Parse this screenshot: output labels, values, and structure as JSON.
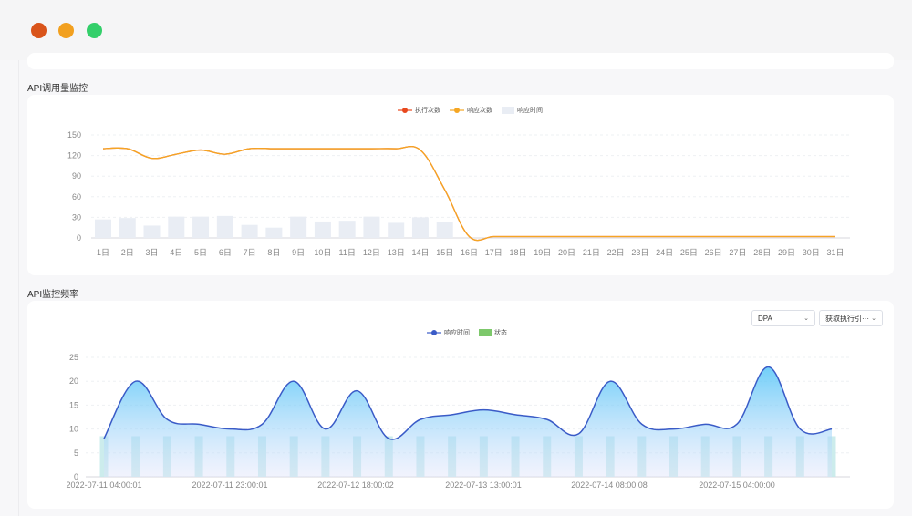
{
  "window": {
    "controls": [
      "close",
      "minimize",
      "maximize"
    ]
  },
  "sections": {
    "api_calls_title": "API调用量监控",
    "api_freq_title": "API监控频率"
  },
  "filters": {
    "dpa_value": "DPA",
    "executor_value": "获取执行引···"
  },
  "colors": {
    "exec": "#e8481d",
    "resp": "#f5a623",
    "resp_time_bar": "#e9edf4",
    "line2": "#3a5bc7",
    "status_bar": "#c6eaea"
  },
  "chart_data": [
    {
      "type": "line",
      "legend": [
        "执行次数",
        "响应次数",
        "响应时间"
      ],
      "categories": [
        "1日",
        "2日",
        "3日",
        "4日",
        "5日",
        "6日",
        "7日",
        "8日",
        "9日",
        "10日",
        "11日",
        "12日",
        "13日",
        "14日",
        "15日",
        "16日",
        "17日",
        "18日",
        "19日",
        "20日",
        "21日",
        "22日",
        "23日",
        "24日",
        "25日",
        "26日",
        "27日",
        "28日",
        "29日",
        "30日",
        "31日"
      ],
      "ylim": [
        0,
        150
      ],
      "yticks": [
        "150",
        "120",
        "90",
        "60",
        "30",
        "0"
      ],
      "series": [
        {
          "name": "执行次数",
          "kind": "line",
          "values": [
            130,
            130,
            116,
            122,
            128,
            122,
            130,
            130,
            130,
            130,
            130,
            130,
            130,
            128,
            70,
            2,
            2,
            2,
            2,
            2,
            2,
            2,
            2,
            2,
            2,
            2,
            2,
            2,
            2,
            2,
            2
          ]
        },
        {
          "name": "响应次数",
          "kind": "line",
          "values": [
            130,
            130,
            116,
            122,
            128,
            122,
            130,
            130,
            130,
            130,
            130,
            130,
            130,
            128,
            70,
            2,
            2,
            2,
            2,
            2,
            2,
            2,
            2,
            2,
            2,
            2,
            2,
            2,
            2,
            2,
            2
          ]
        },
        {
          "name": "响应时间",
          "kind": "bar",
          "values": [
            27,
            29,
            18,
            31,
            31,
            32,
            19,
            15,
            31,
            24,
            25,
            31,
            22,
            30,
            23,
            null,
            null,
            null,
            null,
            null,
            null,
            null,
            null,
            null,
            null,
            null,
            null,
            null,
            null,
            null,
            null
          ]
        }
      ],
      "grid": true
    },
    {
      "type": "area",
      "legend": [
        "响应时间",
        "状态"
      ],
      "ylim": [
        0,
        25
      ],
      "yticks": [
        "25",
        "20",
        "15",
        "10",
        "5",
        "0"
      ],
      "xticks": [
        "2022-07-11 04:00:01",
        "2022-07-11 23:00:01",
        "2022-07-12 18:00:02",
        "2022-07-13 13:00:01",
        "2022-07-14 08:00:08",
        "2022-07-15 04:00:00"
      ],
      "series": [
        {
          "name": "响应时间",
          "kind": "area",
          "values": [
            8,
            20,
            12,
            11,
            10,
            11,
            20,
            10,
            18,
            8,
            12,
            13,
            14,
            13,
            12,
            9,
            20,
            11,
            10,
            11,
            11,
            23,
            10,
            10
          ]
        },
        {
          "name": "状态",
          "kind": "bar",
          "values": [
            8.5,
            8.5,
            8.5,
            8.5,
            8.5,
            8.5,
            8.5,
            8.5,
            8.5,
            8.5,
            8.5,
            8.5,
            8.5,
            8.5,
            8.5,
            8.5,
            8.5,
            8.5,
            8.5,
            8.5,
            8.5,
            8.5,
            8.5,
            8.5
          ]
        }
      ],
      "grid": true
    }
  ]
}
